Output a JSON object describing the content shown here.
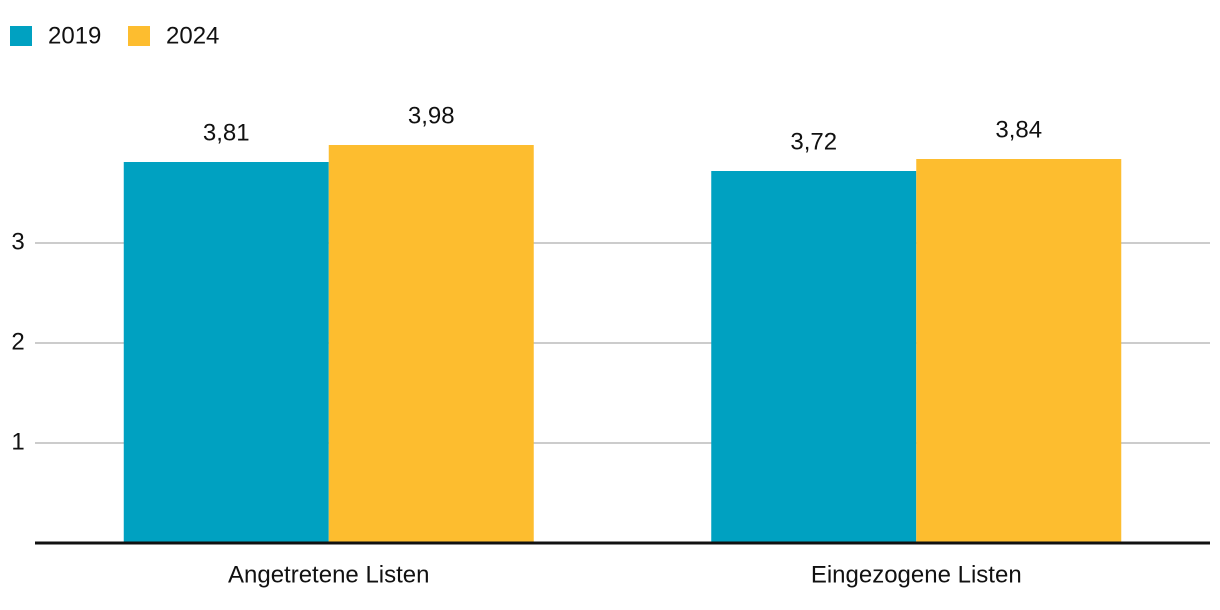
{
  "chart_data": {
    "type": "bar",
    "categories": [
      "Angetretene Listen",
      "Eingezogene Listen"
    ],
    "series": [
      {
        "name": "2019",
        "color": "#00a1c1",
        "values": [
          3.81,
          3.72
        ],
        "value_labels": [
          "3,81",
          "3,72"
        ]
      },
      {
        "name": "2024",
        "color": "#fdbd2f",
        "values": [
          3.98,
          3.84
        ],
        "value_labels": [
          "3,98",
          "3,84"
        ]
      }
    ],
    "ylim": [
      0,
      4.6
    ],
    "yticks": [
      1,
      2,
      3
    ],
    "grid": true,
    "legend": "top-left"
  }
}
